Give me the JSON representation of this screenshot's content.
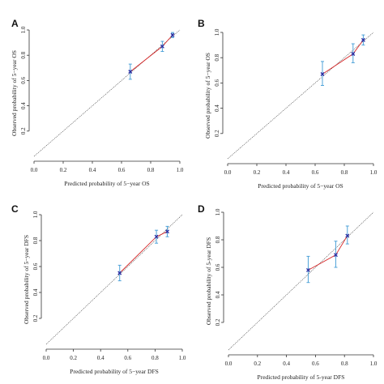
{
  "chart_data": [
    {
      "type": "scatter",
      "panel_label": "A",
      "xlabel": "Predicted probability of 5−year OS",
      "ylabel": "Observed probability of 5−year OS",
      "xlim": [
        0.0,
        1.0
      ],
      "ylim": [
        0.0,
        1.0
      ],
      "x_ticks": [
        0.0,
        0.2,
        0.4,
        0.6,
        0.8,
        1.0
      ],
      "y_ticks": [
        0.2,
        0.4,
        0.6,
        0.8,
        1.0
      ],
      "x_tick_labels": [
        "0.0",
        "0.2",
        "0.4",
        "0.6",
        "0.8",
        "1.0"
      ],
      "y_tick_labels": [
        "0.2",
        "0.4",
        "0.6",
        "0.8",
        "1.0"
      ],
      "reference_line": "y = x",
      "points": [
        {
          "x": 0.66,
          "y": 0.67,
          "ci_low": 0.61,
          "ci_high": 0.73
        },
        {
          "x": 0.88,
          "y": 0.87,
          "ci_low": 0.83,
          "ci_high": 0.91
        },
        {
          "x": 0.95,
          "y": 0.96,
          "ci_low": 0.94,
          "ci_high": 0.98
        }
      ]
    },
    {
      "type": "scatter",
      "panel_label": "B",
      "xlabel": "Predicted probability of 5−year OS",
      "ylabel": "Observed probability of 5−year OS",
      "xlim": [
        0.0,
        1.0
      ],
      "ylim": [
        0.0,
        1.0
      ],
      "x_ticks": [
        0.0,
        0.2,
        0.4,
        0.6,
        0.8,
        1.0
      ],
      "y_ticks": [
        0.2,
        0.4,
        0.6,
        0.8,
        1.0
      ],
      "x_tick_labels": [
        "0.0",
        "0.2",
        "0.4",
        "0.6",
        "0.8",
        "1.0"
      ],
      "y_tick_labels": [
        "0.2",
        "0.4",
        "0.6",
        "0.8",
        "1.0"
      ],
      "reference_line": "y = x",
      "points": [
        {
          "x": 0.65,
          "y": 0.67,
          "ci_low": 0.58,
          "ci_high": 0.77
        },
        {
          "x": 0.86,
          "y": 0.83,
          "ci_low": 0.76,
          "ci_high": 0.91
        },
        {
          "x": 0.93,
          "y": 0.94,
          "ci_low": 0.9,
          "ci_high": 0.98
        }
      ]
    },
    {
      "type": "scatter",
      "panel_label": "C",
      "xlabel": "Predicted probability of 5−year DFS",
      "ylabel": "Observed probability of 5−year DFS",
      "xlim": [
        0.0,
        1.0
      ],
      "ylim": [
        0.0,
        1.0
      ],
      "x_ticks": [
        0.0,
        0.2,
        0.4,
        0.6,
        0.8,
        1.0
      ],
      "y_ticks": [
        0.2,
        0.4,
        0.6,
        0.8,
        1.0
      ],
      "x_tick_labels": [
        "0.0",
        "0.2",
        "0.4",
        "0.6",
        "0.8",
        "1.0"
      ],
      "y_tick_labels": [
        "0.2",
        "0.4",
        "0.6",
        "0.8",
        "1.0"
      ],
      "reference_line": "y = x",
      "points": [
        {
          "x": 0.54,
          "y": 0.55,
          "ci_low": 0.49,
          "ci_high": 0.61
        },
        {
          "x": 0.81,
          "y": 0.83,
          "ci_low": 0.78,
          "ci_high": 0.88
        },
        {
          "x": 0.89,
          "y": 0.87,
          "ci_low": 0.83,
          "ci_high": 0.91
        }
      ]
    },
    {
      "type": "scatter",
      "panel_label": "D",
      "xlabel": "Predicted probability of 5-year DFS",
      "ylabel": "Observed probability of 5-year DFS",
      "xlim": [
        0.0,
        1.0
      ],
      "ylim": [
        0.0,
        1.0
      ],
      "x_ticks": [
        0.0,
        0.2,
        0.4,
        0.6,
        0.8,
        1.0
      ],
      "y_ticks": [
        0.2,
        0.4,
        0.6,
        0.8,
        1.0
      ],
      "x_tick_labels": [
        "0.0",
        "0.2",
        "0.4",
        "0.6",
        "0.8",
        "1.0"
      ],
      "y_tick_labels": [
        "0.2",
        "0.4",
        "0.6",
        "0.8",
        "1.0"
      ],
      "reference_line": "y = x",
      "points": [
        {
          "x": 0.55,
          "y": 0.58,
          "ci_low": 0.49,
          "ci_high": 0.68
        },
        {
          "x": 0.74,
          "y": 0.69,
          "ci_low": 0.6,
          "ci_high": 0.79
        },
        {
          "x": 0.82,
          "y": 0.83,
          "ci_low": 0.77,
          "ci_high": 0.9
        }
      ]
    }
  ],
  "colors": {
    "axis": "#333333",
    "reference_line": "#444444",
    "fit_line": "#d62728",
    "error_bar": "#4fa3d9",
    "marker": "#2a2aa0"
  }
}
